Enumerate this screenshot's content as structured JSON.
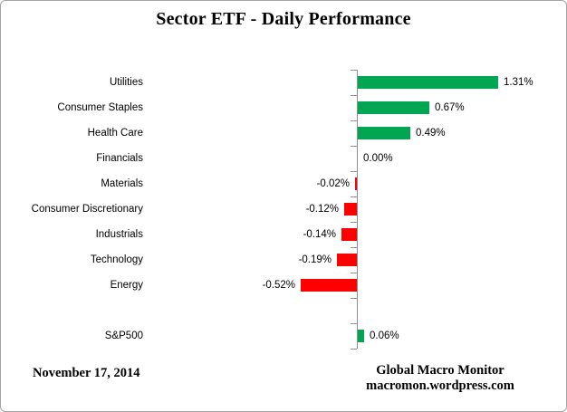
{
  "title": "Sector ETF - Daily Performance",
  "footer": {
    "date": "November 17, 2014",
    "source_line1": "Global Macro Monitor",
    "source_line2": "macromon.wordpress.com"
  },
  "colors": {
    "positive_bar": "#00A651",
    "negative_bar": "#FF0000",
    "axis": "#8E8E8E",
    "text": "#000000"
  },
  "chart_data": {
    "type": "bar",
    "orientation": "horizontal",
    "title": "Sector ETF - Daily Performance",
    "xlabel": "",
    "ylabel": "",
    "grid": false,
    "legend": false,
    "axis_tick_count": 12,
    "xlim": [
      -0.7,
      1.9
    ],
    "categories": [
      "Utilities",
      "Consumer Staples",
      "Health Care",
      "Financials",
      "Materials",
      "Consumer Discretionary",
      "Industrials",
      "Technology",
      "Energy",
      "",
      "S&P500"
    ],
    "values": [
      1.31,
      0.67,
      0.49,
      0.0,
      -0.02,
      -0.12,
      -0.14,
      -0.19,
      -0.52,
      null,
      0.06
    ],
    "value_labels": [
      "1.31%",
      "0.67%",
      "0.49%",
      "0.00%",
      "-0.02%",
      "-0.12%",
      "-0.14%",
      "-0.19%",
      "-0.52%",
      "",
      "0.06%"
    ]
  }
}
